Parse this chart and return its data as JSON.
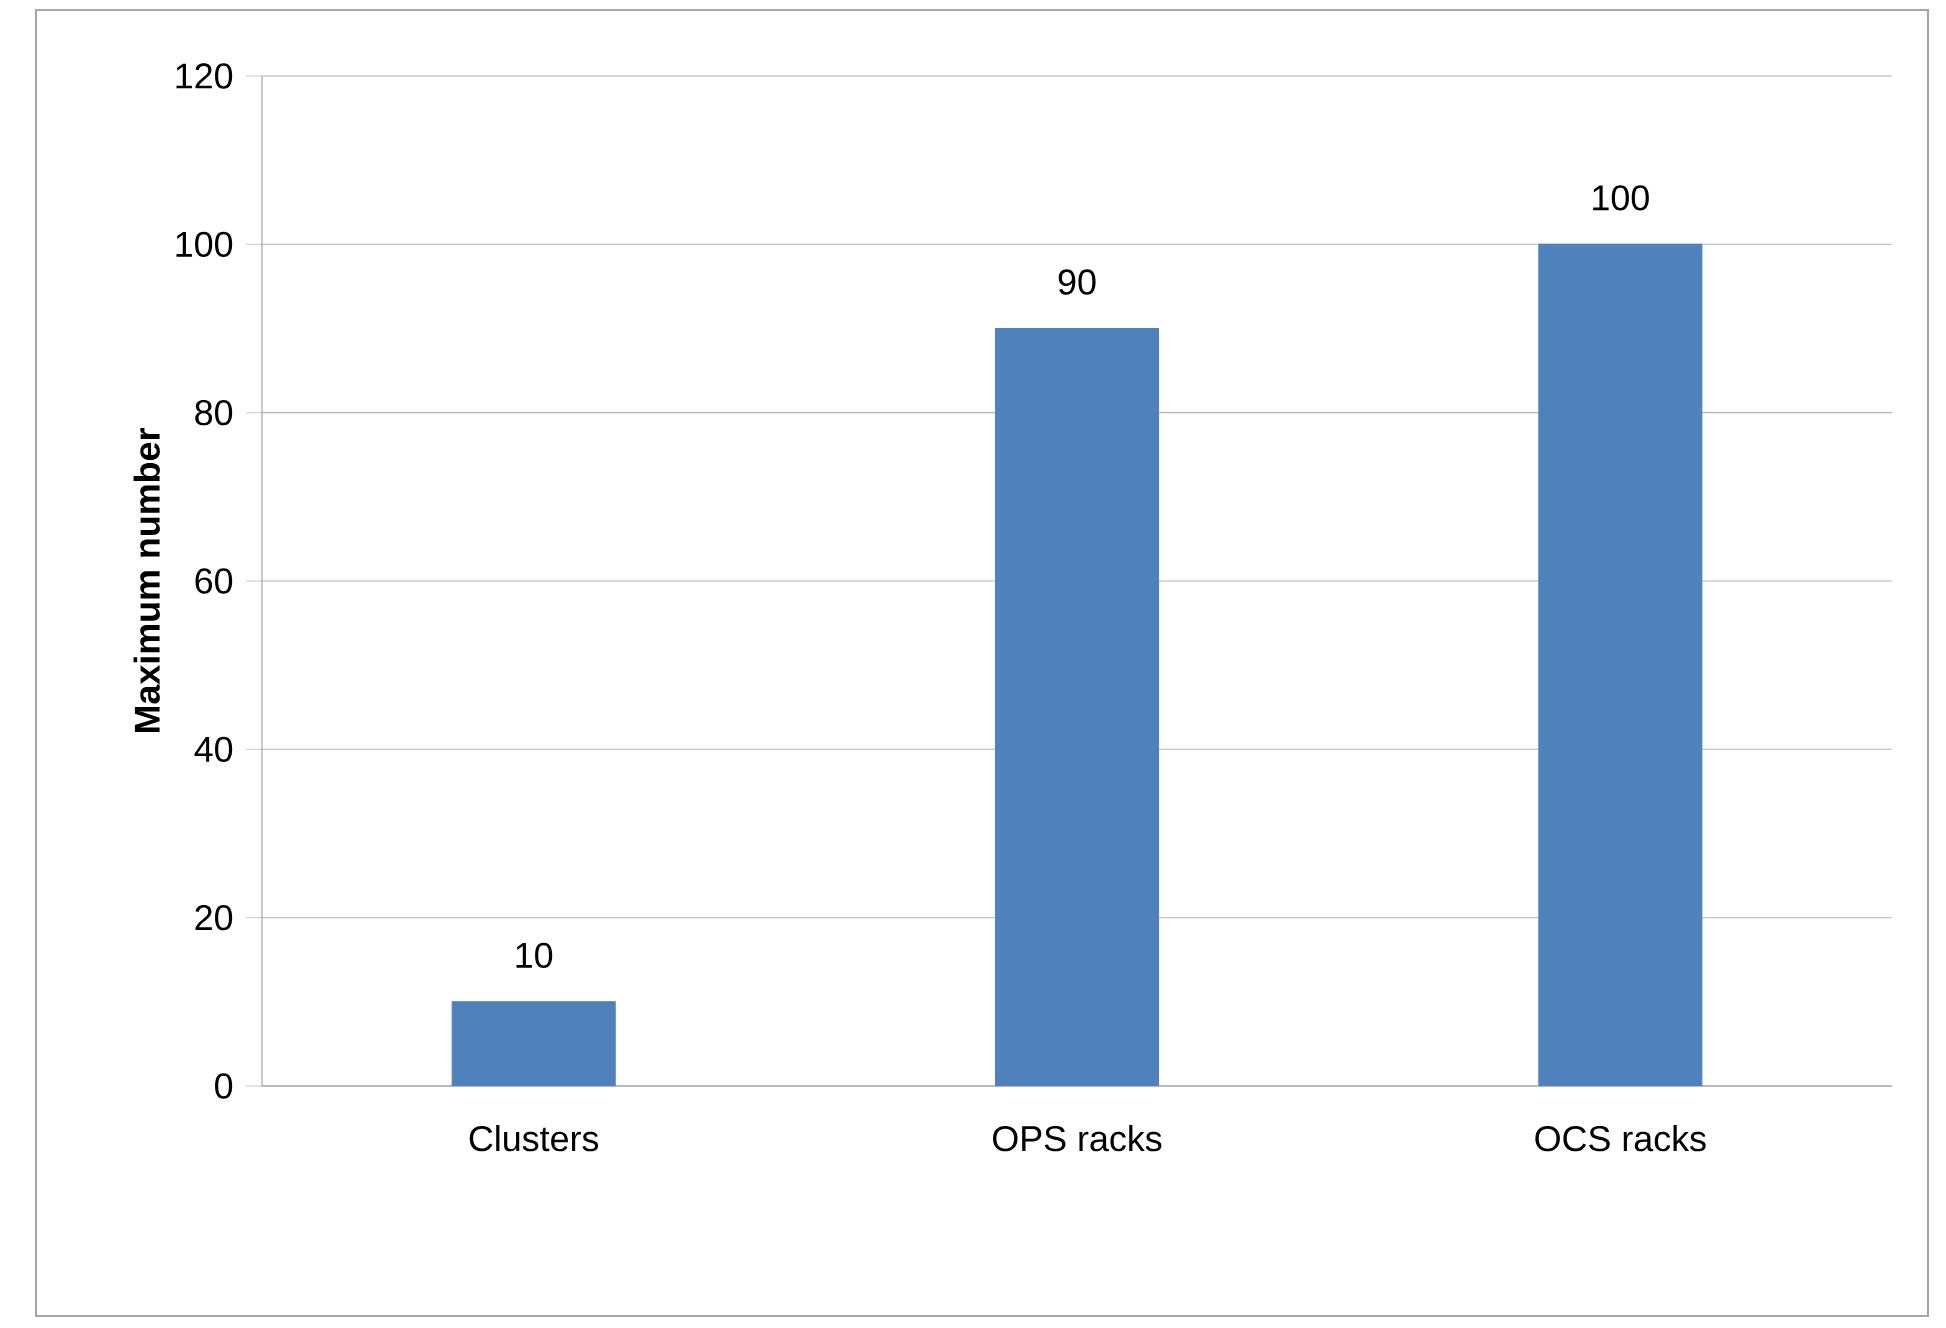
{
  "chart_data": {
    "type": "bar",
    "ylabel": "Maximum number",
    "categories": [
      "Clusters",
      "OPS racks",
      "OCS racks"
    ],
    "values": [
      10,
      90,
      100
    ],
    "color": "#4f81bd",
    "ylim": [
      0,
      120
    ],
    "yticks": [
      0,
      20,
      40,
      60,
      80,
      100,
      120
    ],
    "grid": "y",
    "data_labels": true
  }
}
